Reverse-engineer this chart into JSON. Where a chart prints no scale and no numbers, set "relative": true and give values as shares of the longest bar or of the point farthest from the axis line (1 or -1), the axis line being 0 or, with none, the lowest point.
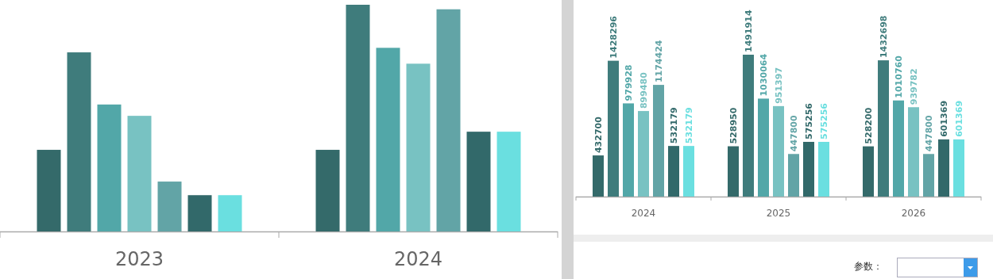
{
  "chart_data": [
    {
      "type": "bar",
      "relative": true,
      "categories": [
        "2023",
        "2024"
      ],
      "series": [
        {
          "color": "#346a6a",
          "values": [
            0.36,
            0.36
          ]
        },
        {
          "color": "#3f7c7c",
          "values": [
            0.79,
            1
          ]
        },
        {
          "color": "#52a7a8",
          "values": [
            0.56,
            0.81
          ]
        },
        {
          "color": "#78c2c2",
          "values": [
            0.51,
            0.74
          ]
        },
        {
          "color": "#62a4a6",
          "values": [
            0.22,
            0.98
          ]
        },
        {
          "color": "#32696a",
          "values": [
            0.16,
            0.44
          ]
        },
        {
          "color": "#6adfe0",
          "values": [
            0.16,
            0.44
          ]
        }
      ]
    },
    {
      "type": "bar",
      "data_labels": true,
      "categories": [
        "2024",
        "2025",
        "2026"
      ],
      "series": [
        {
          "color": "#346a6a",
          "values": [
            432700,
            528950,
            528200
          ]
        },
        {
          "color": "#3f7c7c",
          "values": [
            1428296,
            1491914,
            1432698
          ]
        },
        {
          "color": "#52a7a8",
          "values": [
            979928,
            1030064,
            1010760
          ]
        },
        {
          "color": "#78c2c2",
          "values": [
            899480,
            951397,
            939782
          ]
        },
        {
          "color": "#62a4a6",
          "values": [
            1174424,
            447800,
            447800
          ]
        },
        {
          "color": "#32696a",
          "values": [
            532179,
            575256,
            601369
          ]
        },
        {
          "color": "#6adfe0",
          "values": [
            532179,
            575256,
            601369
          ]
        }
      ]
    },
    {
      "type": "other",
      "annotations": [
        "参数："
      ]
    }
  ]
}
